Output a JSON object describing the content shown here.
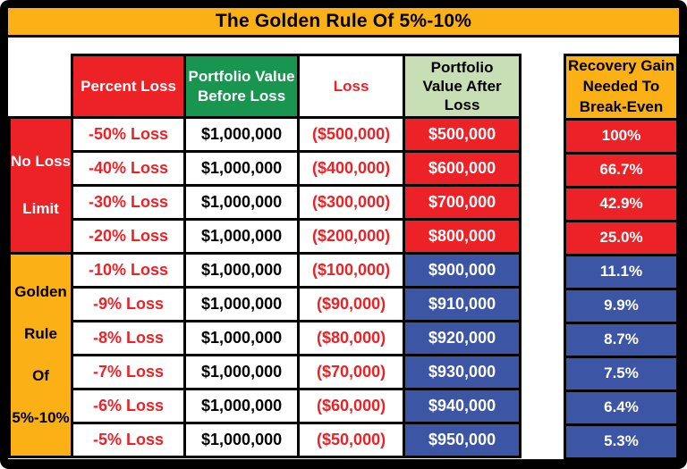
{
  "title": "The Golden Rule Of 5%-10%",
  "colors": {
    "gold": "#FBB116",
    "red": "#EC2227",
    "green": "#18954F",
    "lightgreen": "#C8DFB5",
    "blue": "#3C55A4",
    "frame": "#000000",
    "loss_text": "#EC2227"
  },
  "chart_data": {
    "type": "table",
    "title": "The Golden Rule Of 5%-10%",
    "columns": [
      "Percent Loss",
      "Portfolio Value Before Loss",
      "Loss",
      "Portfolio Value After Loss",
      "Recovery Gain Needed To Break-Even"
    ],
    "row_groups": [
      {
        "label": "No Loss Limit",
        "label_lines": [
          "No Loss",
          "Limit"
        ],
        "rows": 4,
        "accent": "red"
      },
      {
        "label": "Golden Rule Of 5%-10%",
        "label_lines": [
          "Golden",
          "Rule",
          "Of",
          "5%-10%"
        ],
        "rows": 6,
        "accent": "gold"
      }
    ],
    "rows": [
      {
        "group": 0,
        "percent_loss": "-50% Loss",
        "portfolio_before": "$1,000,000",
        "loss": "($500,000)",
        "portfolio_after": "$500,000",
        "recovery_gain": "100%"
      },
      {
        "group": 0,
        "percent_loss": "-40% Loss",
        "portfolio_before": "$1,000,000",
        "loss": "($400,000)",
        "portfolio_after": "$600,000",
        "recovery_gain": "66.7%"
      },
      {
        "group": 0,
        "percent_loss": "-30% Loss",
        "portfolio_before": "$1,000,000",
        "loss": "($300,000)",
        "portfolio_after": "$700,000",
        "recovery_gain": "42.9%"
      },
      {
        "group": 0,
        "percent_loss": "-20% Loss",
        "portfolio_before": "$1,000,000",
        "loss": "($200,000)",
        "portfolio_after": "$800,000",
        "recovery_gain": "25.0%"
      },
      {
        "group": 1,
        "percent_loss": "-10% Loss",
        "portfolio_before": "$1,000,000",
        "loss": "($100,000)",
        "portfolio_after": "$900,000",
        "recovery_gain": "11.1%"
      },
      {
        "group": 1,
        "percent_loss": "-9% Loss",
        "portfolio_before": "$1,000,000",
        "loss": "($90,000)",
        "portfolio_after": "$910,000",
        "recovery_gain": "9.9%"
      },
      {
        "group": 1,
        "percent_loss": "-8% Loss",
        "portfolio_before": "$1,000,000",
        "loss": "($80,000)",
        "portfolio_after": "$920,000",
        "recovery_gain": "8.7%"
      },
      {
        "group": 1,
        "percent_loss": "-7% Loss",
        "portfolio_before": "$1,000,000",
        "loss": "($70,000)",
        "portfolio_after": "$930,000",
        "recovery_gain": "7.5%"
      },
      {
        "group": 1,
        "percent_loss": "-6% Loss",
        "portfolio_before": "$1,000,000",
        "loss": "($60,000)",
        "portfolio_after": "$940,000",
        "recovery_gain": "6.4%"
      },
      {
        "group": 1,
        "percent_loss": "-5% Loss",
        "portfolio_before": "$1,000,000",
        "loss": "($50,000)",
        "portfolio_after": "$950,000",
        "recovery_gain": "5.3%"
      }
    ]
  }
}
